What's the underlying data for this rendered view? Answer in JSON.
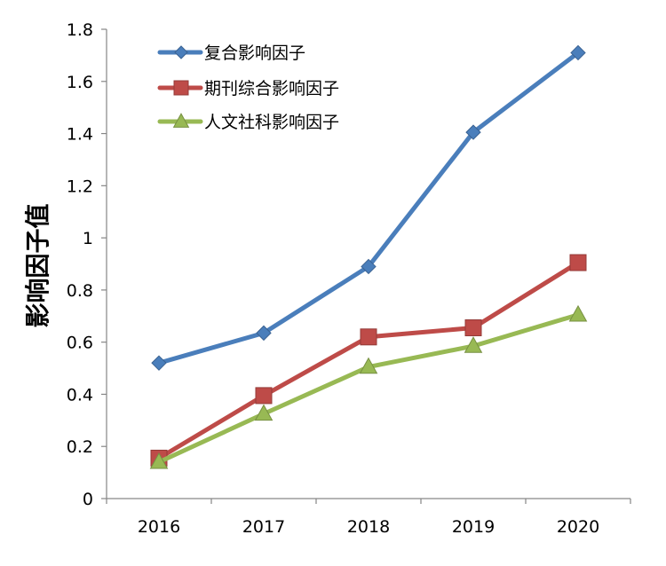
{
  "colors": {
    "series_blue": "#4A7EBB",
    "series_red": "#BE4B48",
    "series_green": "#98B954",
    "axis": "#868686"
  },
  "chart_data": {
    "type": "line",
    "title": "",
    "xlabel": "",
    "ylabel": "影响因子值",
    "categories": [
      "2016",
      "2017",
      "2018",
      "2019",
      "2020"
    ],
    "ylim": [
      0,
      1.8
    ],
    "yticks": [
      "0",
      "0.2",
      "0.4",
      "0.6",
      "0.8",
      "1",
      "1.2",
      "1.4",
      "1.6",
      "1.8"
    ],
    "grid": false,
    "legend_position": "top-left",
    "series": [
      {
        "name": "复合影响因子",
        "marker": "diamond",
        "color": "#4A7EBB",
        "values": [
          0.52,
          0.635,
          0.89,
          1.405,
          1.71
        ]
      },
      {
        "name": "期刊综合影响因子",
        "marker": "square",
        "color": "#BE4B48",
        "values": [
          0.155,
          0.395,
          0.62,
          0.655,
          0.905
        ]
      },
      {
        "name": "人文社科影响因子",
        "marker": "triangle",
        "color": "#98B954",
        "values": [
          0.14,
          0.325,
          0.505,
          0.585,
          0.705
        ]
      }
    ]
  }
}
